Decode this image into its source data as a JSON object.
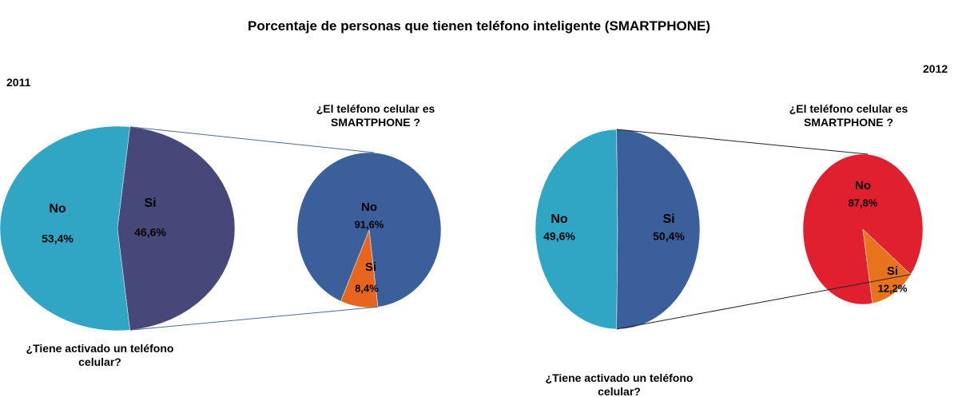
{
  "title": "Porcentaje de personas que tienen teléfono inteligente (SMARTPHONE)",
  "chart_data": [
    {
      "type": "pie",
      "label": "2011",
      "question": "¿Tiene activado un teléfono celular?",
      "categories": [
        "No",
        "Si"
      ],
      "values": [
        53.4,
        46.6
      ],
      "value_labels": [
        "53,4%",
        "46,6%"
      ],
      "colors": [
        "#31a5c4",
        "#46487a"
      ],
      "connector_color": "#4f6b8f",
      "subpie": {
        "question": "¿El teléfono celular es SMARTPHONE ?",
        "categories": [
          "No",
          "Si"
        ],
        "values": [
          91.6,
          8.4
        ],
        "value_labels": [
          "91,6%",
          "8,4%"
        ],
        "colors": [
          "#3a5f9a",
          "#e8651d"
        ]
      }
    },
    {
      "type": "pie",
      "label": "2012",
      "question": "¿Tiene activado un teléfono celular?",
      "categories": [
        "No",
        "Si"
      ],
      "values": [
        49.6,
        50.4
      ],
      "value_labels": [
        "49,6%",
        "50,4%"
      ],
      "colors": [
        "#31a5c4",
        "#3a5f9a"
      ],
      "connector_color": "#222222",
      "subpie": {
        "question": "¿El teléfono celular es SMARTPHONE ?",
        "categories": [
          "No",
          "Si"
        ],
        "values": [
          87.8,
          12.2
        ],
        "value_labels": [
          "87,8%",
          "12,2%"
        ],
        "colors": [
          "#e0202e",
          "#e8731d"
        ]
      }
    }
  ]
}
